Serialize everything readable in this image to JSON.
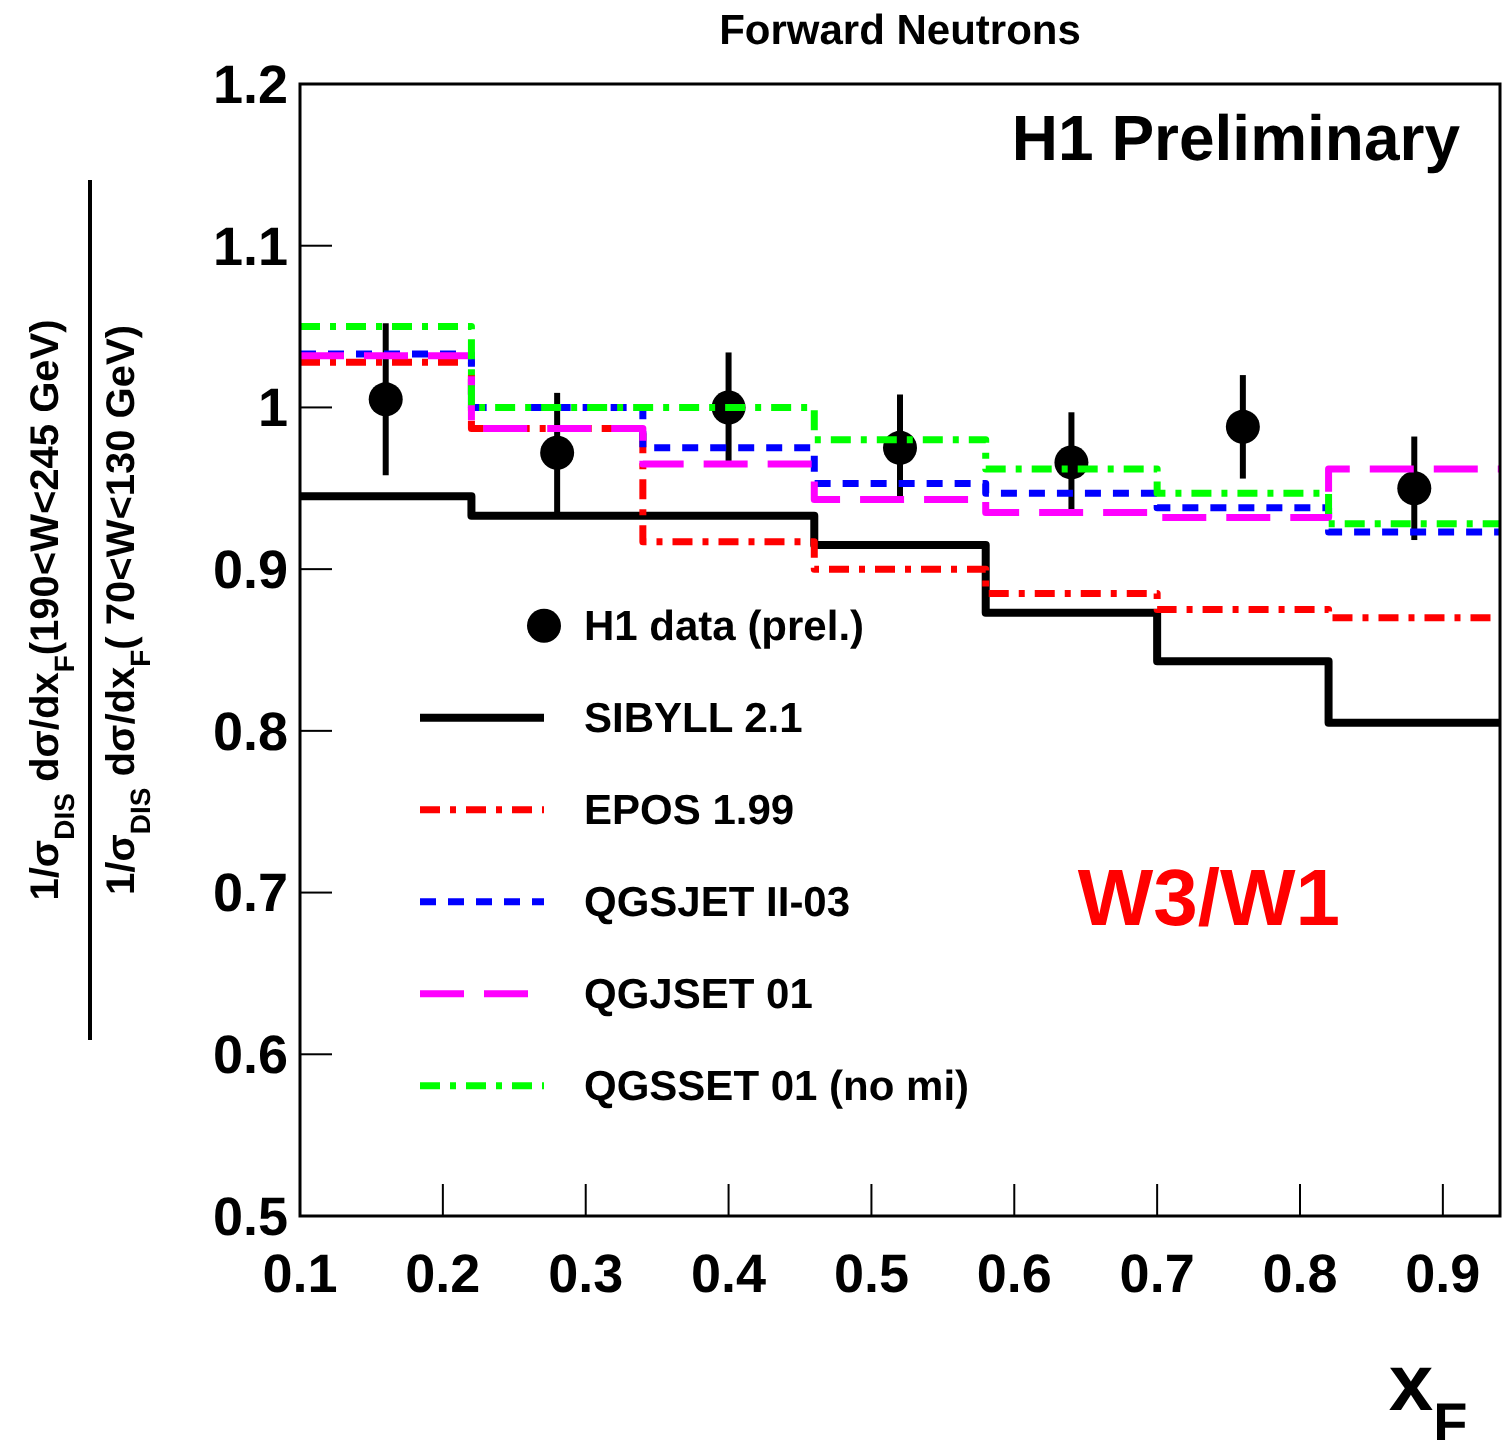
{
  "chart_data": {
    "type": "histogram",
    "title": "Forward Neutrons",
    "xlabel": "x$_{F}$",
    "ylabel": "1/σ$_{DIS}$ dσ/dx$_{F}$(190<W<245 GeV) 1/σ$_{DIS}$ dσ/dx$_{F}$( 70<W<130 GeV)",
    "annotations": [
      "H1 Preliminary",
      "W3/W1"
    ],
    "xlim": [
      0.1,
      0.94
    ],
    "ylim": [
      0.5,
      1.2
    ],
    "xticks": [
      0.1,
      0.2,
      0.3,
      0.4,
      0.5,
      0.6,
      0.7,
      0.8,
      0.9
    ],
    "yticks": [
      0.5,
      0.6,
      0.7,
      0.8,
      0.9,
      1,
      1.1,
      1.2
    ],
    "legend": "bottom left",
    "series": [
      {
        "name": "H1 data (prel.)",
        "type": "scatter",
        "marker": "circle",
        "color": "#000000",
        "x": [
          0.16,
          0.28,
          0.4,
          0.52,
          0.64,
          0.76,
          0.88
        ],
        "values": [
          1.005,
          0.972,
          1.0,
          0.975,
          0.966,
          0.988,
          0.95
        ],
        "errors": [
          0.047,
          0.037,
          0.034,
          0.033,
          0.031,
          0.032,
          0.032
        ]
      },
      {
        "name": "SIBYLL 2.1",
        "line_style": "solid",
        "color": "#000000",
        "bins": [
          0.1,
          0.22,
          0.34,
          0.46,
          0.58,
          0.7,
          0.82,
          0.94
        ],
        "values": [
          0.945,
          0.933,
          0.933,
          0.915,
          0.873,
          0.843,
          0.805
        ]
      },
      {
        "name": "EPOS 1.99",
        "line_style": "dashdot",
        "color": "#ff0000",
        "bins": [
          0.1,
          0.22,
          0.34,
          0.46,
          0.58,
          0.7,
          0.82,
          0.94
        ],
        "values": [
          1.028,
          0.987,
          0.917,
          0.9,
          0.885,
          0.875,
          0.87
        ]
      },
      {
        "name": "QGSJET II-03",
        "line_style": "dotted",
        "color": "#0000ff",
        "bins": [
          0.1,
          0.22,
          0.34,
          0.46,
          0.58,
          0.7,
          0.82,
          0.94
        ],
        "values": [
          1.033,
          1.0,
          0.975,
          0.953,
          0.947,
          0.938,
          0.923
        ]
      },
      {
        "name": "QGJSET 01",
        "line_style": "dashed",
        "color": "#ff00ff",
        "bins": [
          0.1,
          0.22,
          0.34,
          0.46,
          0.58,
          0.7,
          0.82,
          0.94
        ],
        "values": [
          1.032,
          0.987,
          0.965,
          0.943,
          0.935,
          0.932,
          0.962
        ]
      },
      {
        "name": "QGSSET 01 (no mi)",
        "line_style": "dashdot",
        "color": "#00ff00",
        "bins": [
          0.1,
          0.22,
          0.34,
          0.46,
          0.58,
          0.7,
          0.82,
          0.94
        ],
        "values": [
          1.05,
          1.0,
          1.0,
          0.98,
          0.962,
          0.947,
          0.928
        ]
      }
    ]
  }
}
